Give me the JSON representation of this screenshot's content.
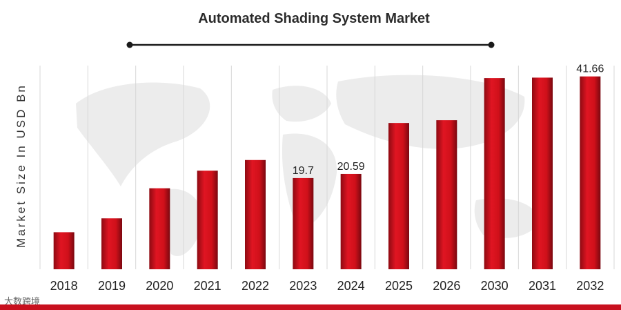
{
  "chart_data": {
    "type": "bar",
    "title": "Automated Shading System Market",
    "ylabel": "Market Size In USD Bn",
    "xlabel": "",
    "categories": [
      "2018",
      "2019",
      "2020",
      "2021",
      "2022",
      "2023",
      "2024",
      "2025",
      "2026",
      "2030",
      "2031",
      "2032"
    ],
    "values": [
      8.0,
      11.0,
      17.5,
      21.3,
      23.6,
      19.7,
      20.59,
      31.6,
      32.2,
      41.3,
      41.4,
      41.66
    ],
    "data_labels": [
      "",
      "",
      "",
      "",
      "",
      "19.7",
      "20.59",
      "",
      "",
      "",
      "",
      "41.66"
    ],
    "ylim": [
      0,
      44
    ],
    "grid": true,
    "legend": "none",
    "bar_color": "#d0101a",
    "band_color": "#c8101e"
  },
  "watermark": "大数跨境"
}
